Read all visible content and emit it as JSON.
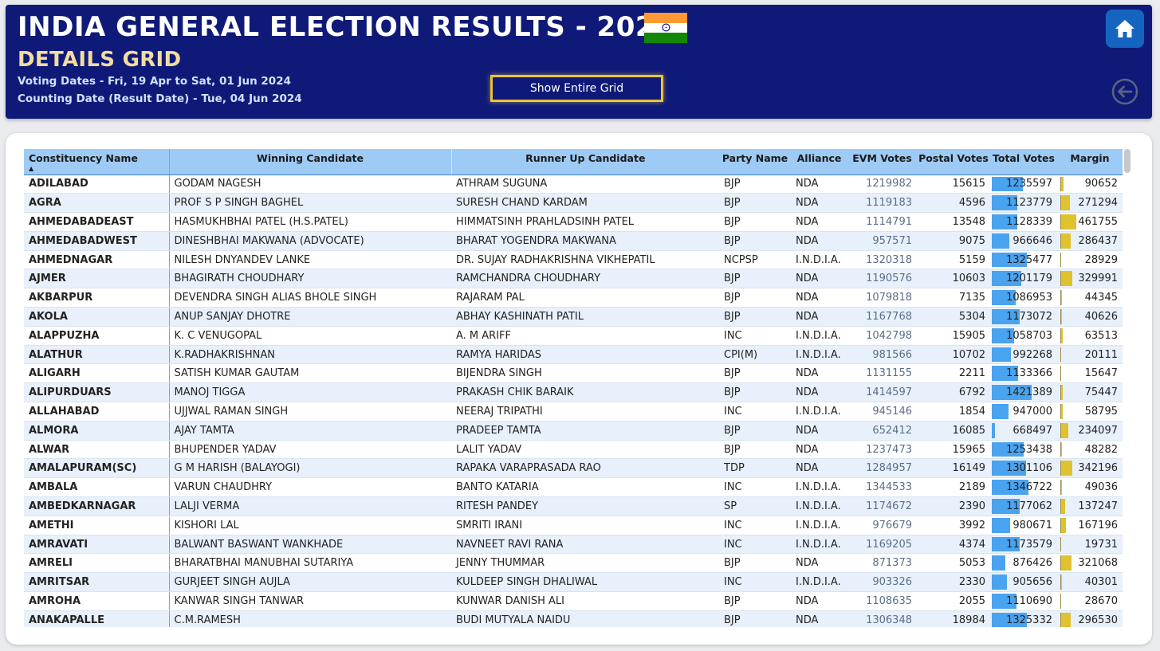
{
  "header": {
    "title": "INDIA GENERAL ELECTION RESULTS - 2024",
    "subtitle": "DETAILS GRID",
    "voting_dates": "Voting Dates - Fri, 19 Apr to Sat, 01 Jun 2024",
    "counting_date": "Counting Date (Result Date) - Tue, 04 Jun 2024",
    "show_grid_label": "Show Entire Grid",
    "flag_colors": [
      "#ff9933",
      "#ffffff",
      "#138808"
    ],
    "chakra_color": "#000080",
    "home_icon": "home-icon",
    "back_icon": "arrow-left-circle-icon"
  },
  "grid": {
    "columns": [
      "Constituency Name",
      "Winning Candidate",
      "Runner Up Candidate",
      "Party Name",
      "Alliance",
      "EVM Votes",
      "Postal Votes",
      "Total Votes",
      "Margin"
    ],
    "sort_column": "Constituency Name",
    "sort_direction": "ascending",
    "bar_colors": {
      "total_votes": "#4aa3ef",
      "margin": "#e0c12f"
    },
    "rows": [
      [
        "ADILABAD",
        "GODAM NAGESH",
        "ATHRAM SUGUNA",
        "BJP",
        "NDA",
        "1219982",
        "15615",
        "1235597",
        "90652"
      ],
      [
        "AGRA",
        "PROF S P SINGH BAGHEL",
        "SURESH CHAND KARDAM",
        "BJP",
        "NDA",
        "1119183",
        "4596",
        "1123779",
        "271294"
      ],
      [
        "AHMEDABADEAST",
        "HASMUKHBHAI PATEL (H.S.PATEL)",
        "HIMMATSINH PRAHLADSINH PATEL",
        "BJP",
        "NDA",
        "1114791",
        "13548",
        "1128339",
        "461755"
      ],
      [
        "AHMEDABADWEST",
        "DINESHBHAI MAKWANA (ADVOCATE)",
        "BHARAT YOGENDRA MAKWANA",
        "BJP",
        "NDA",
        "957571",
        "9075",
        "966646",
        "286437"
      ],
      [
        "AHMEDNAGAR",
        "NILESH DNYANDEV LANKE",
        "DR. SUJAY RADHAKRISHNA VIKHEPATIL",
        "NCPSP",
        "I.N.D.I.A.",
        "1320318",
        "5159",
        "1325477",
        "28929"
      ],
      [
        "AJMER",
        "BHAGIRATH CHOUDHARY",
        "RAMCHANDRA CHOUDHARY",
        "BJP",
        "NDA",
        "1190576",
        "10603",
        "1201179",
        "329991"
      ],
      [
        "AKBARPUR",
        "DEVENDRA SINGH ALIAS BHOLE SINGH",
        "RAJARAM PAL",
        "BJP",
        "NDA",
        "1079818",
        "7135",
        "1086953",
        "44345"
      ],
      [
        "AKOLA",
        "ANUP SANJAY DHOTRE",
        "ABHAY KASHINATH PATIL",
        "BJP",
        "NDA",
        "1167768",
        "5304",
        "1173072",
        "40626"
      ],
      [
        "ALAPPUZHA",
        "K. C VENUGOPAL",
        "A. M ARIFF",
        "INC",
        "I.N.D.I.A.",
        "1042798",
        "15905",
        "1058703",
        "63513"
      ],
      [
        "ALATHUR",
        "K.RADHAKRISHNAN",
        "RAMYA HARIDAS",
        "CPI(M)",
        "I.N.D.I.A.",
        "981566",
        "10702",
        "992268",
        "20111"
      ],
      [
        "ALIGARH",
        "SATISH KUMAR GAUTAM",
        "BIJENDRA SINGH",
        "BJP",
        "NDA",
        "1131155",
        "2211",
        "1133366",
        "15647"
      ],
      [
        "ALIPURDUARS",
        "MANOJ TIGGA",
        "PRAKASH CHIK BARAIK",
        "BJP",
        "NDA",
        "1414597",
        "6792",
        "1421389",
        "75447"
      ],
      [
        "ALLAHABAD",
        "UJJWAL RAMAN SINGH",
        "NEERAJ TRIPATHI",
        "INC",
        "I.N.D.I.A.",
        "945146",
        "1854",
        "947000",
        "58795"
      ],
      [
        "ALMORA",
        "AJAY TAMTA",
        "PRADEEP TAMTA",
        "BJP",
        "NDA",
        "652412",
        "16085",
        "668497",
        "234097"
      ],
      [
        "ALWAR",
        "BHUPENDER YADAV",
        "LALIT YADAV",
        "BJP",
        "NDA",
        "1237473",
        "15965",
        "1253438",
        "48282"
      ],
      [
        "AMALAPURAM(SC)",
        "G M HARISH (BALAYOGI)",
        "RAPAKA VARAPRASADA RAO",
        "TDP",
        "NDA",
        "1284957",
        "16149",
        "1301106",
        "342196"
      ],
      [
        "AMBALA",
        "VARUN CHAUDHRY",
        "BANTO KATARIA",
        "INC",
        "I.N.D.I.A.",
        "1344533",
        "2189",
        "1346722",
        "49036"
      ],
      [
        "AMBEDKARNAGAR",
        "LALJI VERMA",
        "RITESH PANDEY",
        "SP",
        "I.N.D.I.A.",
        "1174672",
        "2390",
        "1177062",
        "137247"
      ],
      [
        "AMETHI",
        "KISHORI LAL",
        "SMRITI IRANI",
        "INC",
        "I.N.D.I.A.",
        "976679",
        "3992",
        "980671",
        "167196"
      ],
      [
        "AMRAVATI",
        "BALWANT BASWANT WANKHADE",
        "NAVNEET RAVI RANA",
        "INC",
        "I.N.D.I.A.",
        "1169205",
        "4374",
        "1173579",
        "19731"
      ],
      [
        "AMRELI",
        "BHARATBHAI MANUBHAI SUTARIYA",
        "JENNY THUMMAR",
        "BJP",
        "NDA",
        "871373",
        "5053",
        "876426",
        "321068"
      ],
      [
        "AMRITSAR",
        "GURJEET SINGH AUJLA",
        "KULDEEP SINGH DHALIWAL",
        "INC",
        "I.N.D.I.A.",
        "903326",
        "2330",
        "905656",
        "40301"
      ],
      [
        "AMROHA",
        "KANWAR SINGH TANWAR",
        "KUNWAR DANISH ALI",
        "BJP",
        "NDA",
        "1108635",
        "2055",
        "1110690",
        "28670"
      ],
      [
        "ANAKAPALLE",
        "C.M.RAMESH",
        "BUDI MUTYALA NAIDU",
        "BJP",
        "NDA",
        "1306348",
        "18984",
        "1325332",
        "296530"
      ]
    ]
  }
}
